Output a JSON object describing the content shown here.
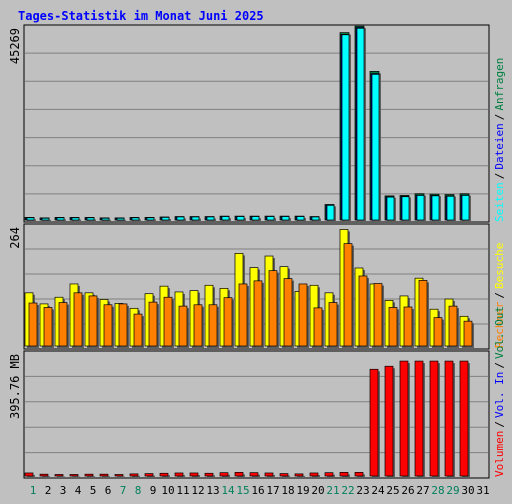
{
  "title": "Tages-Statistik im Monat Juni 2025",
  "colors": {
    "title": "#0000ff",
    "weekday": "#000000",
    "weekend": "#00805c",
    "anfragen": "#008040",
    "dateien": "#0000ff",
    "seiten": "#00ffff",
    "besuche": "#ffff00",
    "rechner": "#ff8000",
    "volumen": "#ff0000",
    "vol_in": "#0000ff",
    "vol_out": "#008040"
  },
  "legend": {
    "anfragen": "Anfragen",
    "dateien": "Dateien",
    "seiten": "Seiten",
    "besuche": "Besuche",
    "rechner": "Rechner",
    "vol_out": "Vol. Out",
    "vol_in": "Vol. In",
    "volumen": "Volumen",
    "separator": "/"
  },
  "chart_data": {
    "type": "bar",
    "days": [
      1,
      2,
      3,
      4,
      5,
      6,
      7,
      8,
      9,
      10,
      11,
      12,
      13,
      14,
      15,
      16,
      17,
      18,
      19,
      20,
      21,
      22,
      23,
      24,
      25,
      26,
      27,
      28,
      29,
      30,
      31
    ],
    "weekend_days": [
      1,
      7,
      8,
      14,
      15,
      21,
      22,
      28,
      29
    ],
    "hits_panel": {
      "max_label": "45269",
      "ymax": 45269,
      "series": [
        {
          "name": "Anfragen",
          "values": [
            600,
            500,
            600,
            600,
            600,
            500,
            500,
            600,
            600,
            700,
            800,
            800,
            800,
            900,
            900,
            900,
            900,
            900,
            900,
            800,
            3600,
            43500,
            45000,
            34500,
            5600,
            5700,
            6100,
            6000,
            5900,
            6100,
            0
          ]
        },
        {
          "name": "Dateien",
          "values": [
            550,
            450,
            550,
            550,
            550,
            450,
            450,
            550,
            550,
            650,
            750,
            750,
            750,
            850,
            850,
            850,
            850,
            850,
            850,
            750,
            3500,
            43100,
            44700,
            34000,
            5400,
            5500,
            5800,
            5700,
            5600,
            5800,
            0
          ]
        },
        {
          "name": "Seiten",
          "values": [
            500,
            400,
            500,
            500,
            500,
            400,
            400,
            500,
            500,
            600,
            700,
            700,
            700,
            800,
            800,
            800,
            800,
            800,
            800,
            700,
            3400,
            43000,
            44500,
            33800,
            5300,
            5400,
            5700,
            5600,
            5500,
            5700,
            0
          ]
        }
      ]
    },
    "visits_panel": {
      "max_label": "264",
      "ymax": 264,
      "series": [
        {
          "name": "Besuche",
          "values": [
            120,
            95,
            110,
            140,
            120,
            105,
            96,
            85,
            118,
            135,
            122,
            125,
            137,
            130,
            209,
            177,
            203,
            179,
            123,
            137,
            120,
            263,
            176,
            140,
            103,
            113,
            153,
            83,
            106,
            67,
            0
          ]
        },
        {
          "name": "Rechner",
          "values": [
            97,
            87,
            98,
            120,
            113,
            93,
            95,
            72,
            99,
            110,
            90,
            93,
            93,
            109,
            140,
            147,
            170,
            152,
            140,
            86,
            98,
            231,
            158,
            141,
            87,
            88,
            148,
            64,
            90,
            56,
            0
          ]
        }
      ]
    },
    "volume_panel": {
      "max_label": "395.76 MB",
      "ymax": 395.76,
      "unit": "MB",
      "series": [
        {
          "name": "Volumen",
          "values": [
            10,
            6,
            5,
            5,
            6,
            6,
            5,
            7,
            8,
            9,
            10,
            10,
            9,
            11,
            12,
            11,
            10,
            8,
            7,
            10,
            11,
            12,
            12,
            352,
            362,
            379,
            379,
            379,
            379,
            379,
            0
          ]
        }
      ]
    }
  }
}
